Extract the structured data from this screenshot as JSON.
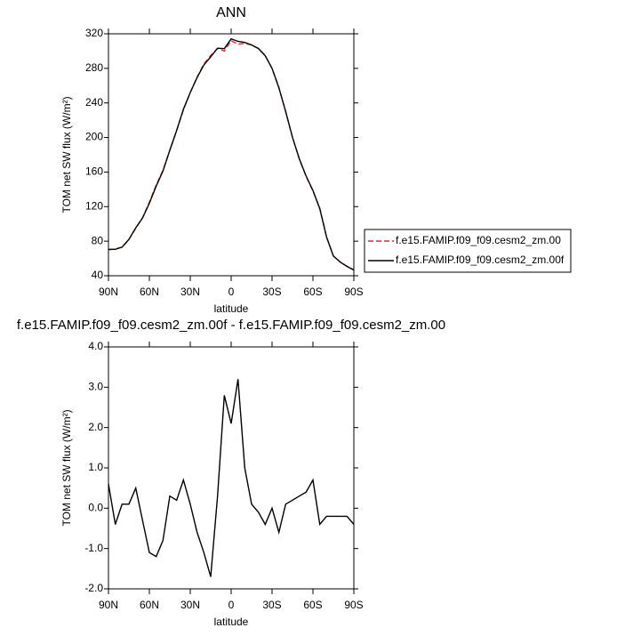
{
  "chart_data": [
    {
      "type": "line",
      "title": "ANN",
      "xlabel": "latitude",
      "ylabel": "TOM net SW flux (W/m²)",
      "x": [
        90,
        85,
        80,
        75,
        70,
        65,
        60,
        55,
        50,
        45,
        40,
        35,
        30,
        25,
        20,
        15,
        10,
        5,
        0,
        -5,
        -10,
        -15,
        -20,
        -25,
        -30,
        -35,
        -40,
        -45,
        -50,
        -55,
        -60,
        -65,
        -70,
        -75,
        -80,
        -85,
        -90
      ],
      "xlim": [
        90,
        -90
      ],
      "xticks": [
        {
          "value": 90,
          "label": "90N"
        },
        {
          "value": 60,
          "label": "60N"
        },
        {
          "value": 30,
          "label": "30N"
        },
        0,
        {
          "value": -30,
          "label": "30S"
        },
        {
          "value": -60,
          "label": "60S"
        },
        {
          "value": -90,
          "label": "90S"
        }
      ],
      "ylim": [
        40,
        320
      ],
      "yticks": [
        40,
        80,
        120,
        160,
        200,
        240,
        280,
        320
      ],
      "legend_position": "right",
      "series": [
        {
          "name": "f.e15.FAMIP.f09_f09.cesm2_zm.00",
          "color": "#e8262a",
          "dashed": true,
          "values": [
            70,
            71,
            73,
            82,
            95,
            107,
            125,
            145,
            162,
            185,
            208,
            232,
            252,
            270,
            285,
            295,
            303,
            300,
            312,
            308,
            309,
            307,
            303,
            295,
            280,
            258,
            230,
            200,
            175,
            155,
            138,
            118,
            85,
            63,
            56,
            51,
            47
          ]
        },
        {
          "name": "f.e15.FAMIP.f09_f09.cesm2_zm.00f",
          "color": "#000000",
          "dashed": false,
          "values": [
            70.6,
            70.6,
            73.1,
            82.1,
            95.5,
            106.7,
            123.9,
            143.8,
            161.2,
            185.3,
            208.2,
            232.7,
            252.1,
            269.4,
            283.9,
            293.3,
            303.3,
            302.8,
            314.1,
            311.2,
            310,
            307.1,
            302.9,
            294.6,
            280,
            257.4,
            230.1,
            200.2,
            175.3,
            155.4,
            138.7,
            117.6,
            84.8,
            62.8,
            55.8,
            50.8,
            46.6
          ]
        }
      ]
    },
    {
      "type": "line",
      "title": "f.e15.FAMIP.f09_f09.cesm2_zm.00f - f.e15.FAMIP.f09_f09.cesm2_zm.00",
      "xlabel": "latitude",
      "ylabel": "TOM net SW flux (W/m²)",
      "x": [
        90,
        85,
        80,
        75,
        70,
        65,
        60,
        55,
        50,
        45,
        40,
        35,
        30,
        25,
        20,
        15,
        10,
        5,
        0,
        -5,
        -10,
        -15,
        -20,
        -25,
        -30,
        -35,
        -40,
        -45,
        -50,
        -55,
        -60,
        -65,
        -70,
        -75,
        -80,
        -85,
        -90
      ],
      "xlim": [
        90,
        -90
      ],
      "xticks": [
        {
          "value": 90,
          "label": "90N"
        },
        {
          "value": 60,
          "label": "60N"
        },
        {
          "value": 30,
          "label": "30N"
        },
        0,
        {
          "value": -30,
          "label": "30S"
        },
        {
          "value": -60,
          "label": "60S"
        },
        {
          "value": -90,
          "label": "90S"
        }
      ],
      "ylim": [
        -2,
        4
      ],
      "yticks": [
        {
          "value": -2,
          "label": "-2.0"
        },
        {
          "value": -1,
          "label": "-1.0"
        },
        {
          "value": 0,
          "label": "0.0"
        },
        {
          "value": 1,
          "label": "1.0"
        },
        {
          "value": 2,
          "label": "2.0"
        },
        {
          "value": 3,
          "label": "3.0"
        },
        {
          "value": 4,
          "label": "4.0"
        }
      ],
      "color": "#000000",
      "values": [
        0.6,
        -0.4,
        0.1,
        0.1,
        0.5,
        -0.3,
        -1.1,
        -1.2,
        -0.8,
        0.3,
        0.2,
        0.7,
        0.1,
        -0.6,
        -1.1,
        -1.7,
        0.3,
        2.8,
        2.1,
        3.2,
        1.0,
        0.1,
        -0.1,
        -0.4,
        0.0,
        -0.6,
        0.1,
        0.2,
        0.3,
        0.4,
        0.7,
        -0.4,
        -0.2,
        -0.2,
        -0.2,
        -0.2,
        -0.4
      ]
    }
  ]
}
